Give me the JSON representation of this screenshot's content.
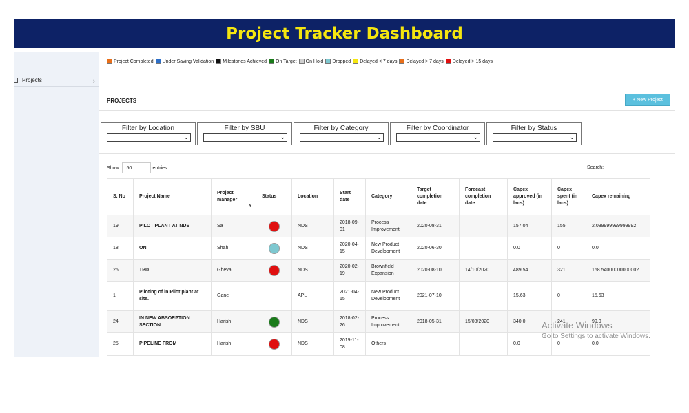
{
  "banner": {
    "title": "Project Tracker Dashboard"
  },
  "sidebar": {
    "items": [
      {
        "label": "Projects",
        "chevron": "›",
        "icon": "grid-icon"
      }
    ]
  },
  "legend": [
    {
      "label": "Project Completed",
      "color": "#e86f1a"
    },
    {
      "label": "Under Saving Validation",
      "color": "#2e6fc7"
    },
    {
      "label": "Milestones Achieved",
      "color": "#111111"
    },
    {
      "label": "On Target",
      "color": "#1a7a1a"
    },
    {
      "label": "On Hold",
      "color": "#cfcfcf"
    },
    {
      "label": "Dropped",
      "color": "#7ec8d0"
    },
    {
      "label": "Delayed < 7 days",
      "color": "#f5e60f"
    },
    {
      "label": "Delayed > 7 days",
      "color": "#e86f1a"
    },
    {
      "label": "Delayed > 15 days",
      "color": "#e01010"
    }
  ],
  "section": {
    "title": "PROJECTS",
    "new_button": "+ New Project"
  },
  "filters": [
    {
      "label": "Filter by Location"
    },
    {
      "label": "Filter by SBU"
    },
    {
      "label": "Filter by Category"
    },
    {
      "label": "Filter by Coordinator"
    },
    {
      "label": "Filter by Status"
    }
  ],
  "table_controls": {
    "show_label": "Show",
    "entries_value": "50",
    "entries_label": "entries",
    "search_label": "Search:"
  },
  "table": {
    "columns": [
      {
        "label": "S. No"
      },
      {
        "label": "Project Name"
      },
      {
        "label": "Project manager",
        "sorted": true
      },
      {
        "label": "Status"
      },
      {
        "label": "Location"
      },
      {
        "label": "Start date"
      },
      {
        "label": "Category"
      },
      {
        "label": "Target completion date"
      },
      {
        "label": "Forecast completion date"
      },
      {
        "label": "Capex approved (in lacs)"
      },
      {
        "label": "Capex spent (in lacs)"
      },
      {
        "label": "Capex remaining"
      }
    ],
    "rows": [
      {
        "sno": "19",
        "name": "PILOT PLANT AT NDS",
        "manager": "Sa",
        "status": "#e01010",
        "location": "NDS",
        "start": "2018-09-01",
        "category": "Process Improvement",
        "target": "2020-08-31",
        "forecast": "",
        "approved": "157.04",
        "spent": "155",
        "remaining": "2.039999999999992"
      },
      {
        "sno": "18",
        "name": "ON",
        "manager": "Shah",
        "status": "#7ec8d0",
        "location": "NDS",
        "start": "2020-04-15",
        "category": "New Product Development",
        "target": "2020-06-30",
        "forecast": "",
        "approved": "0.0",
        "spent": "0",
        "remaining": "0.0"
      },
      {
        "sno": "26",
        "name": "TPD",
        "manager": "Gheva",
        "status": "#e01010",
        "location": "NDS",
        "start": "2020-02-19",
        "category": "Brownfield Expansion",
        "target": "2020-08-10",
        "forecast": "14/10/2020",
        "approved": "489.54",
        "spent": "321",
        "remaining": "168.54000000000002"
      },
      {
        "sno": "1",
        "name": "Piloting of in Pilot plant at site.",
        "manager": "Gane",
        "status": "",
        "location": "APL",
        "start": "2021-04-15",
        "category": "New Product Development",
        "target": "2021-07-10",
        "forecast": "",
        "approved": "15.63",
        "spent": "0",
        "remaining": "15.63"
      },
      {
        "sno": "24",
        "name": "IN NEW ABSORPTION SECTION",
        "manager": "Harish",
        "status": "#1a7a1a",
        "location": "NDS",
        "start": "2018-02-26",
        "category": "Process Improvement",
        "target": "2018-05-31",
        "forecast": "15/08/2020",
        "approved": "340.0",
        "spent": "241",
        "remaining": "99.0"
      },
      {
        "sno": "25",
        "name": "PIPELINE FROM",
        "manager": "Harish",
        "status": "#e01010",
        "location": "NDS",
        "start": "2019-11-08",
        "category": "Others",
        "target": "",
        "forecast": "",
        "approved": "0.0",
        "spent": "0",
        "remaining": "0.0"
      }
    ]
  },
  "watermark": {
    "title": "Activate Windows",
    "subtitle": "Go to Settings to activate Windows."
  }
}
